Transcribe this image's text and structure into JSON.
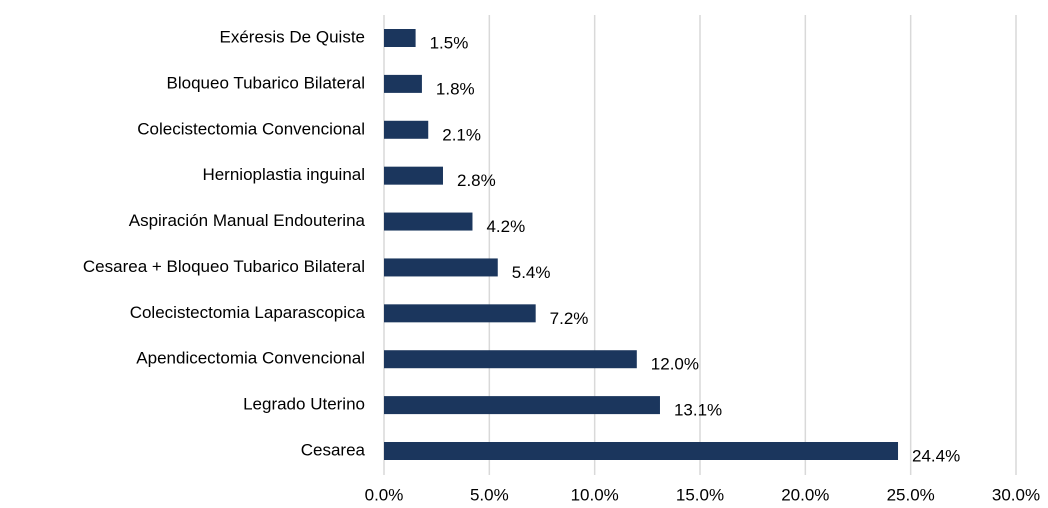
{
  "chart_data": {
    "type": "hbar",
    "categories": [
      "Exéresis De Quiste",
      "Bloqueo Tubarico Bilateral",
      "Colecistectomia Convencional",
      "Hernioplastia inguinal",
      "Aspiración Manual Endouterina",
      "Cesarea + Bloqueo Tubarico Bilateral",
      "Colecistectomia Laparascopica",
      "Apendicectomia Convencional",
      "Legrado Uterino",
      "Cesarea"
    ],
    "values": [
      1.5,
      1.8,
      2.1,
      2.8,
      4.2,
      5.4,
      7.2,
      12.0,
      13.1,
      24.4
    ],
    "value_labels": [
      "1.5%",
      "1.8%",
      "2.1%",
      "2.8%",
      "4.2%",
      "5.4%",
      "7.2%",
      "12.0%",
      "13.1%",
      "24.4%"
    ],
    "color": "#1b365d",
    "xlim": [
      0,
      30
    ],
    "xticks": [
      {
        "value": 0,
        "label": "0.0%"
      },
      {
        "value": 5,
        "label": "5.0%"
      },
      {
        "value": 10,
        "label": "10.0%"
      },
      {
        "value": 15,
        "label": "15.0%"
      },
      {
        "value": 20,
        "label": "20.0%"
      },
      {
        "value": 25,
        "label": "25.0%"
      },
      {
        "value": 30,
        "label": "30.0%"
      }
    ],
    "grid": true
  }
}
